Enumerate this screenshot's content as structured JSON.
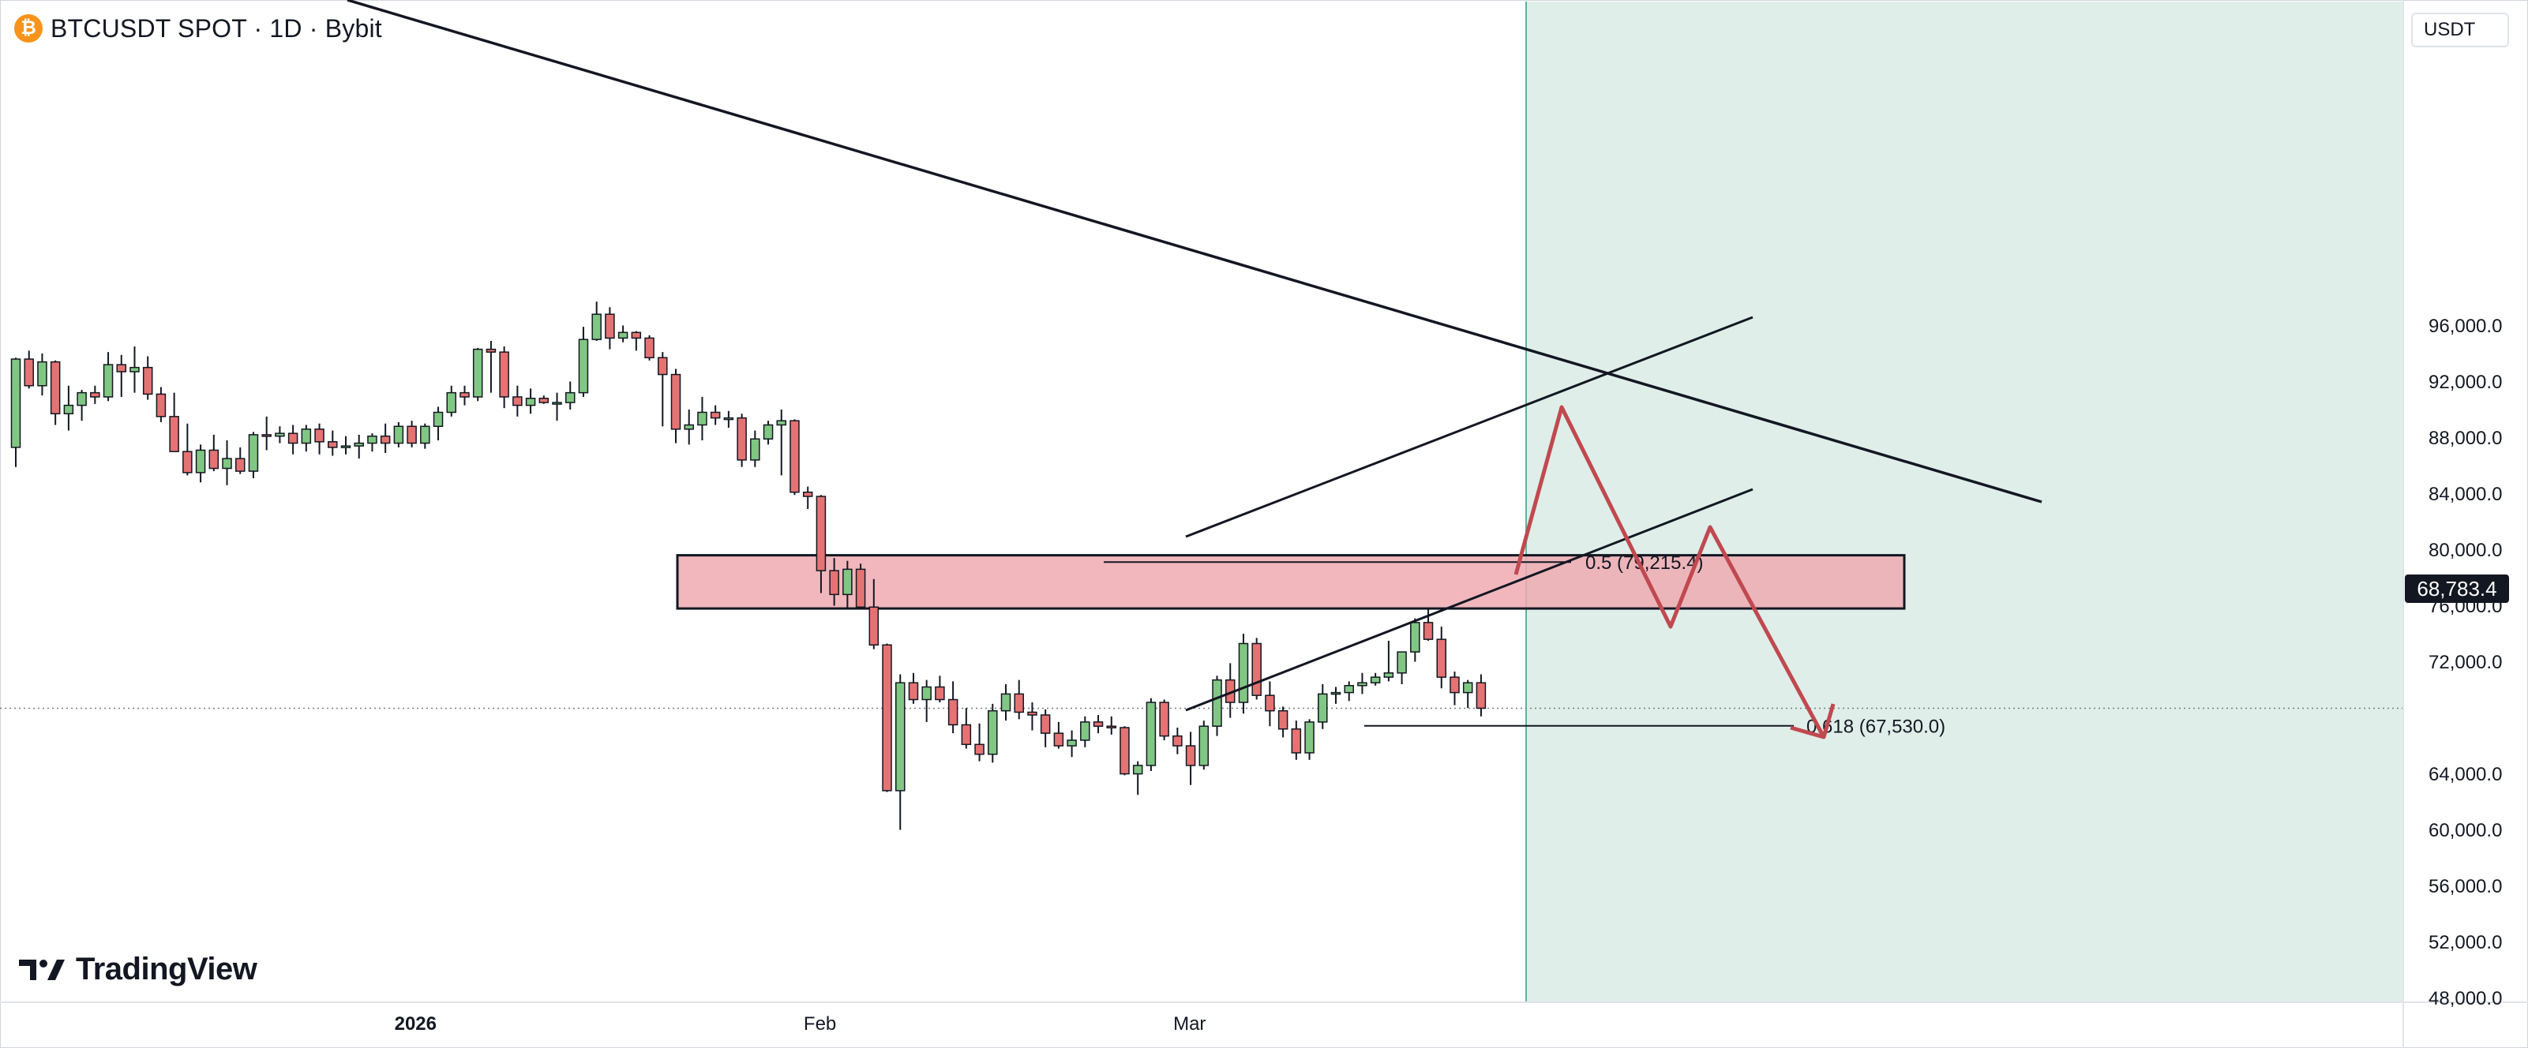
{
  "header": {
    "symbol_title": "BTCUSDT SPOT · 1D · Bybit",
    "coin_glyph": "₿",
    "currency": "USDT"
  },
  "logo": {
    "text": "TradingView"
  },
  "current_price": "68,783.4",
  "colors": {
    "bull_candle": "#81c784",
    "bear_candle": "#e57373",
    "projection_area": "#dfeee9",
    "supply_zone": "#eeaab1",
    "forecast_arrow": "#c0494f",
    "divider_line": "#5fb3a3"
  },
  "chart_data": {
    "type": "candlestick",
    "timeframe": "1D",
    "y_axis": {
      "ticks": [
        {
          "value": 96000,
          "label": "96,000.0"
        },
        {
          "value": 92000,
          "label": "92,000.0"
        },
        {
          "value": 88000,
          "label": "88,000.0"
        },
        {
          "value": 84000,
          "label": "84,000.0"
        },
        {
          "value": 80000,
          "label": "80,000.0"
        },
        {
          "value": 76000,
          "label": "76,000.0"
        },
        {
          "value": 72000,
          "label": "72,000.0"
        },
        {
          "value": 64000,
          "label": "64,000.0"
        },
        {
          "value": 60000,
          "label": "60,000.0"
        },
        {
          "value": 56000,
          "label": "56,000.0"
        },
        {
          "value": 52000,
          "label": "52,000.0"
        },
        {
          "value": 48000,
          "label": "48,000.0"
        }
      ],
      "ylim": [
        44000,
        101000
      ]
    },
    "x_axis": {
      "ticks": [
        {
          "label": "2026",
          "bar_index": 30
        },
        {
          "label": "Feb",
          "bar_index": 61
        },
        {
          "label": "Mar",
          "bar_index": 89
        }
      ]
    },
    "candles": [
      [
        87400,
        93800,
        86000,
        93700
      ],
      [
        93700,
        94300,
        91600,
        91800
      ],
      [
        91800,
        94100,
        91100,
        93500
      ],
      [
        93500,
        93600,
        89000,
        89800
      ],
      [
        89800,
        91800,
        88600,
        90400
      ],
      [
        90400,
        91500,
        89300,
        91300
      ],
      [
        91300,
        91800,
        90500,
        91000
      ],
      [
        91000,
        94200,
        90700,
        93300
      ],
      [
        93300,
        94000,
        91000,
        92800
      ],
      [
        92800,
        94600,
        91300,
        93100
      ],
      [
        93100,
        93900,
        90800,
        91200
      ],
      [
        91200,
        91700,
        89200,
        89600
      ],
      [
        89600,
        91300,
        87100,
        87100
      ],
      [
        87100,
        89100,
        85400,
        85600
      ],
      [
        85600,
        87600,
        84900,
        87200
      ],
      [
        87200,
        88300,
        85700,
        85900
      ],
      [
        85900,
        87900,
        84700,
        86600
      ],
      [
        86600,
        87400,
        85500,
        85700
      ],
      [
        85700,
        88500,
        85200,
        88300
      ],
      [
        88300,
        89600,
        87200,
        88200
      ],
      [
        88200,
        88900,
        87700,
        88400
      ],
      [
        88400,
        89000,
        86900,
        87700
      ],
      [
        87700,
        89000,
        87100,
        88700
      ],
      [
        88700,
        89100,
        86900,
        87800
      ],
      [
        87800,
        88600,
        86800,
        87400
      ],
      [
        87400,
        88200,
        86900,
        87500
      ],
      [
        87500,
        88300,
        86600,
        87700
      ],
      [
        87700,
        88400,
        87100,
        88200
      ],
      [
        88200,
        89100,
        87000,
        87700
      ],
      [
        87700,
        89200,
        87400,
        88900
      ],
      [
        88900,
        89300,
        87400,
        87700
      ],
      [
        87700,
        89100,
        87300,
        88900
      ],
      [
        88900,
        90300,
        87900,
        89900
      ],
      [
        89900,
        91800,
        89600,
        91300
      ],
      [
        91300,
        91800,
        90400,
        91000
      ],
      [
        91000,
        94500,
        90700,
        94400
      ],
      [
        94400,
        95000,
        91300,
        94200
      ],
      [
        94200,
        94600,
        90200,
        91000
      ],
      [
        91000,
        91800,
        89600,
        90400
      ],
      [
        90400,
        91600,
        89800,
        90900
      ],
      [
        90900,
        91100,
        90500,
        90600
      ],
      [
        90600,
        91300,
        89300,
        90600
      ],
      [
        90600,
        92100,
        90100,
        91300
      ],
      [
        91300,
        96000,
        91000,
        95100
      ],
      [
        95100,
        97800,
        95000,
        96900
      ],
      [
        96900,
        97400,
        94400,
        95200
      ],
      [
        95200,
        96100,
        94900,
        95600
      ],
      [
        95600,
        95700,
        94300,
        95200
      ],
      [
        95200,
        95400,
        93600,
        93800
      ],
      [
        93800,
        94200,
        88900,
        92600
      ],
      [
        92600,
        93000,
        87700,
        88700
      ],
      [
        88700,
        90100,
        87600,
        89000
      ],
      [
        89000,
        91000,
        87900,
        89900
      ],
      [
        89900,
        90400,
        89000,
        89500
      ],
      [
        89500,
        90000,
        88800,
        89500
      ],
      [
        89500,
        89800,
        86000,
        86500
      ],
      [
        86500,
        88600,
        86000,
        88000
      ],
      [
        88000,
        89300,
        87600,
        89000
      ],
      [
        89000,
        90100,
        85400,
        89300
      ],
      [
        89300,
        89400,
        84000,
        84200
      ],
      [
        84200,
        84600,
        83000,
        83900
      ],
      [
        83900,
        84000,
        77000,
        78600
      ],
      [
        78600,
        79500,
        76100,
        76900
      ],
      [
        76900,
        79300,
        75900,
        78700
      ],
      [
        78700,
        79100,
        75900,
        76000
      ],
      [
        76000,
        78000,
        73000,
        73300
      ],
      [
        73300,
        73400,
        62800,
        62900
      ],
      [
        62900,
        71200,
        60100,
        70600
      ],
      [
        70600,
        71300,
        69100,
        69400
      ],
      [
        69400,
        70800,
        67800,
        70300
      ],
      [
        70300,
        71100,
        69200,
        69400
      ],
      [
        69400,
        70700,
        67000,
        67600
      ],
      [
        67600,
        68800,
        65900,
        66200
      ],
      [
        66200,
        67700,
        65000,
        65500
      ],
      [
        65500,
        69100,
        64900,
        68600
      ],
      [
        68600,
        70500,
        67900,
        69800
      ],
      [
        69800,
        70800,
        68000,
        68500
      ],
      [
        68500,
        69200,
        67200,
        68300
      ],
      [
        68300,
        68700,
        66000,
        67000
      ],
      [
        67000,
        67800,
        65900,
        66100
      ],
      [
        66100,
        67200,
        65300,
        66500
      ],
      [
        66500,
        68200,
        66000,
        67800
      ],
      [
        67800,
        68300,
        67000,
        67500
      ],
      [
        67500,
        68200,
        66900,
        67400
      ],
      [
        67400,
        67500,
        64000,
        64100
      ],
      [
        64100,
        65000,
        62600,
        64700
      ],
      [
        64700,
        69500,
        64300,
        69200
      ],
      [
        69200,
        69400,
        66500,
        66800
      ],
      [
        66800,
        67400,
        65500,
        66100
      ],
      [
        66100,
        67100,
        63300,
        64700
      ],
      [
        64700,
        67900,
        64400,
        67500
      ],
      [
        67500,
        71100,
        66800,
        70800
      ],
      [
        70800,
        72000,
        68100,
        69200
      ],
      [
        69200,
        74100,
        68400,
        73400
      ],
      [
        73400,
        73800,
        69400,
        69700
      ],
      [
        69700,
        70700,
        67500,
        68600
      ],
      [
        68600,
        68900,
        66700,
        67300
      ],
      [
        67300,
        67900,
        65100,
        65600
      ],
      [
        65600,
        68000,
        65100,
        67800
      ],
      [
        67800,
        70500,
        67300,
        69800
      ],
      [
        69800,
        70300,
        69100,
        69900
      ],
      [
        69900,
        70700,
        69300,
        70400
      ],
      [
        70400,
        71300,
        69800,
        70600
      ],
      [
        70600,
        71300,
        70400,
        71000
      ],
      [
        71000,
        73600,
        70700,
        71300
      ],
      [
        71300,
        72800,
        70500,
        72800
      ],
      [
        72800,
        75200,
        72100,
        74900
      ],
      [
        74900,
        75900,
        73600,
        73700
      ],
      [
        73700,
        74600,
        70200,
        71000
      ],
      [
        71000,
        71400,
        69000,
        69900
      ],
      [
        69900,
        70800,
        68800,
        70600
      ],
      [
        70600,
        71200,
        68200,
        68783.4
      ]
    ],
    "supply_zone": {
      "low": 75900,
      "high": 79700
    },
    "fib_levels": [
      {
        "label": "0.5 (79,215.4)",
        "value": 79215.4
      },
      {
        "label": "0.618 (67,530.0)",
        "value": 67530.0
      }
    ],
    "grid": false
  }
}
